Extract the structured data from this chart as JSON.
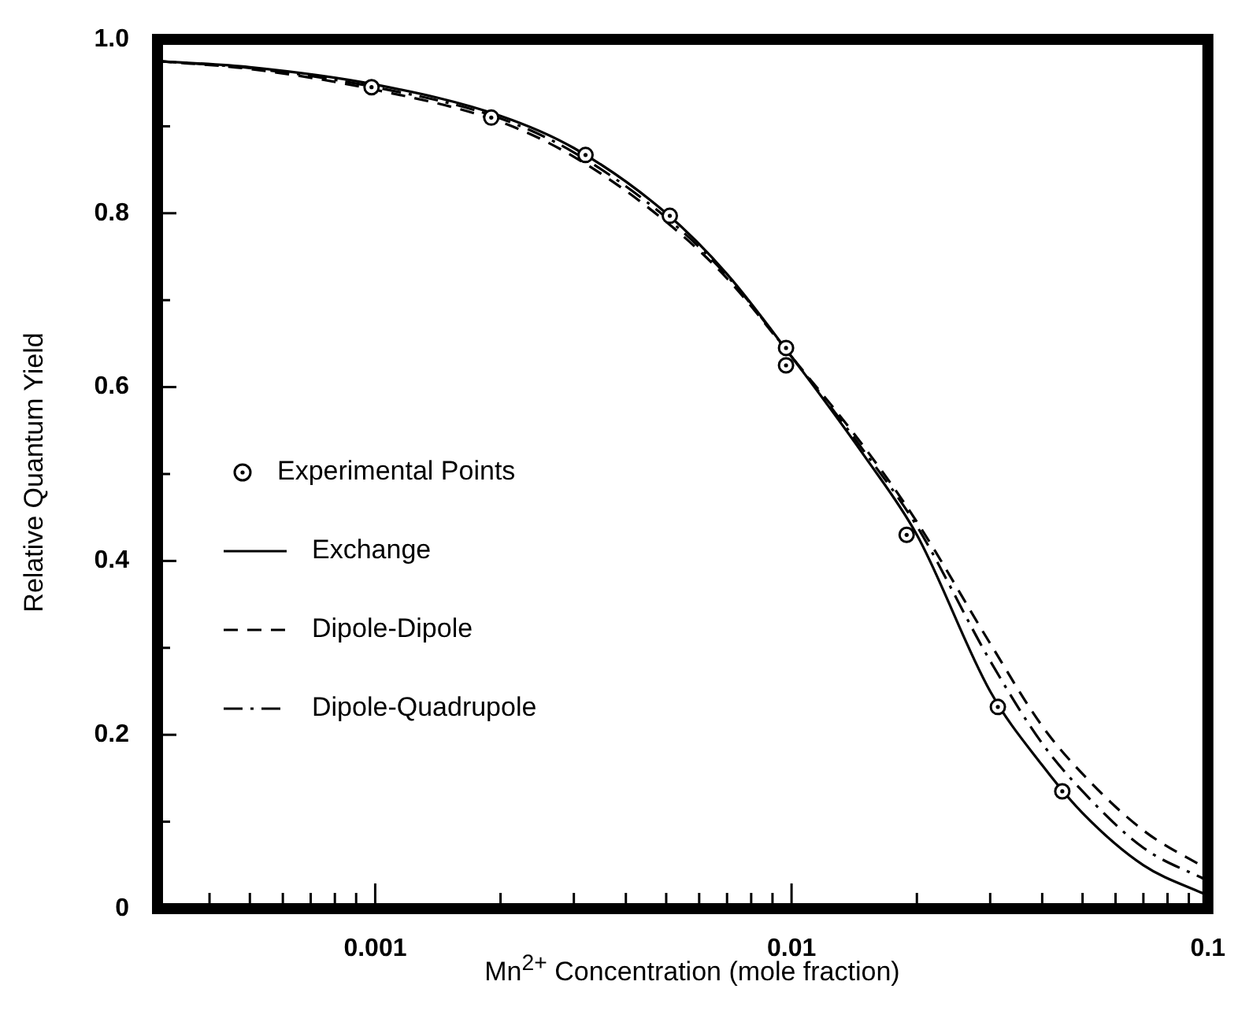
{
  "chart_data": {
    "type": "line",
    "xlabel": "Mn$^{2+}$ Concentration  (mole  fraction)",
    "ylabel": "Relative Quantum Yield",
    "log": "x",
    "xlim": [
      0.0003,
      0.1
    ],
    "ylim": [
      0,
      1
    ],
    "xticks": [
      {
        "value": 0.0004,
        "label": null
      },
      {
        "value": 0.0005,
        "label": null
      },
      {
        "value": 0.0006,
        "label": null
      },
      {
        "value": 0.0007,
        "label": null
      },
      {
        "value": 0.0008,
        "label": null
      },
      {
        "value": 0.0009,
        "label": null
      },
      {
        "value": 0.001,
        "label": "0.001"
      },
      {
        "value": 0.002,
        "label": null
      },
      {
        "value": 0.003,
        "label": null
      },
      {
        "value": 0.004,
        "label": null
      },
      {
        "value": 0.005,
        "label": null
      },
      {
        "value": 0.006,
        "label": null
      },
      {
        "value": 0.007,
        "label": null
      },
      {
        "value": 0.008,
        "label": null
      },
      {
        "value": 0.009,
        "label": null
      },
      {
        "value": 0.01,
        "label": "0.01"
      },
      {
        "value": 0.02,
        "label": null
      },
      {
        "value": 0.03,
        "label": null
      },
      {
        "value": 0.04,
        "label": null
      },
      {
        "value": 0.05,
        "label": null
      },
      {
        "value": 0.06,
        "label": null
      },
      {
        "value": 0.07,
        "label": null
      },
      {
        "value": 0.08,
        "label": null
      },
      {
        "value": 0.09,
        "label": null
      },
      {
        "value": 0.1,
        "label": "0.1"
      }
    ],
    "yticks": [
      0,
      {
        "value": 0.1,
        "label": null
      },
      0.2,
      {
        "value": 0.3,
        "label": null
      },
      0.4,
      {
        "value": 0.5,
        "label": null
      },
      0.6,
      {
        "value": 0.7,
        "label": null
      },
      0.8,
      {
        "value": 0.9,
        "label": null
      },
      {
        "value": 1,
        "label": "1.0"
      }
    ],
    "grid": false,
    "legend": "left",
    "series": [
      {
        "name": "Experimental Points",
        "type": "scatter",
        "marker": "circle",
        "color": "#000000",
        "x": [
          0.00098,
          0.0019,
          0.0032,
          0.0051,
          0.0097,
          0.0097,
          0.0189,
          0.0313,
          0.0447
        ],
        "values": [
          0.945,
          0.91,
          0.867,
          0.797,
          0.645,
          0.625,
          0.43,
          0.232,
          0.135
        ]
      },
      {
        "name": "Exchange",
        "type": "line",
        "line_style": "solid",
        "color": "#000000",
        "x": [
          0.0003,
          0.0005,
          0.001,
          0.002,
          0.003,
          0.005,
          0.007,
          0.01,
          0.015,
          0.02,
          0.03,
          0.04,
          0.05,
          0.07,
          0.1
        ],
        "values": [
          0.975,
          0.968,
          0.948,
          0.912,
          0.875,
          0.8,
          0.73,
          0.635,
          0.52,
          0.43,
          0.25,
          0.165,
          0.11,
          0.05,
          0.015
        ]
      },
      {
        "name": "Dipole-Dipole",
        "type": "line",
        "line_style": "dashed",
        "color": "#000000",
        "x": [
          0.0003,
          0.0005,
          0.001,
          0.002,
          0.003,
          0.005,
          0.007,
          0.01,
          0.015,
          0.02,
          0.03,
          0.04,
          0.05,
          0.07,
          0.1
        ],
        "values": [
          0.975,
          0.966,
          0.942,
          0.905,
          0.865,
          0.79,
          0.725,
          0.635,
          0.53,
          0.445,
          0.305,
          0.21,
          0.155,
          0.09,
          0.045
        ]
      },
      {
        "name": "Dipole-Quadrupole",
        "type": "line",
        "line_style": "dashdot",
        "color": "#000000",
        "x": [
          0.0003,
          0.0005,
          0.001,
          0.002,
          0.003,
          0.005,
          0.007,
          0.01,
          0.015,
          0.02,
          0.03,
          0.04,
          0.05,
          0.07,
          0.1
        ],
        "values": [
          0.975,
          0.967,
          0.945,
          0.909,
          0.87,
          0.795,
          0.728,
          0.635,
          0.525,
          0.44,
          0.285,
          0.19,
          0.135,
          0.07,
          0.032
        ]
      }
    ]
  }
}
